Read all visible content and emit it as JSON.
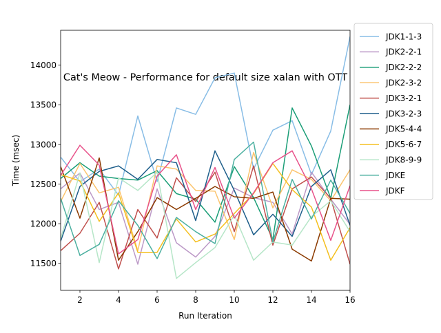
{
  "chart_data": {
    "type": "line",
    "title": "Cat's Meow - Performance for default size xalan with OTT",
    "xlabel": "Run Iteration",
    "ylabel": "Time (msec)",
    "xlim": [
      1,
      16
    ],
    "ylim": [
      11160,
      14440
    ],
    "xticks": [
      2,
      4,
      6,
      8,
      10,
      12,
      14,
      16
    ],
    "yticks": [
      11500,
      12000,
      12500,
      13000,
      13500,
      14000
    ],
    "grid": false,
    "legend_position": "outside-right",
    "x": [
      1,
      2,
      3,
      4,
      5,
      6,
      7,
      8,
      9,
      10,
      11,
      12,
      13,
      14,
      15,
      16
    ],
    "series": [
      {
        "name": "JDK1-1-3",
        "color": "#88bde6",
        "values": [
          12840,
          12530,
          12690,
          12360,
          13360,
          12530,
          13460,
          13380,
          13840,
          13900,
          12690,
          13180,
          13300,
          12620,
          13170,
          14360
        ]
      },
      {
        "name": "JDK2-2-1",
        "color": "#bc99c7",
        "values": [
          12440,
          12640,
          12180,
          12270,
          11490,
          12440,
          11760,
          11580,
          11840,
          12450,
          12330,
          12270,
          11870,
          12650,
          12310,
          11990
        ]
      },
      {
        "name": "JDK2-2-2",
        "color": "#1b9e77",
        "values": [
          12570,
          12770,
          12600,
          12570,
          12550,
          12670,
          12380,
          12310,
          12020,
          12720,
          12330,
          11800,
          13460,
          12980,
          12320,
          13500
        ]
      },
      {
        "name": "JDK2-3-2",
        "color": "#fbc46e",
        "values": [
          12280,
          12760,
          12390,
          12460,
          11660,
          12730,
          12690,
          12420,
          12410,
          11800,
          12900,
          12200,
          12680,
          12560,
          12290,
          12680
        ]
      },
      {
        "name": "JDK3-2-1",
        "color": "#c0504d",
        "values": [
          11660,
          11880,
          12270,
          11430,
          12180,
          11820,
          12580,
          12280,
          12650,
          11900,
          12730,
          11730,
          12440,
          12590,
          12320,
          11490
        ]
      },
      {
        "name": "JDK3-2-3",
        "color": "#1f5f8b",
        "values": [
          11780,
          12470,
          12660,
          12730,
          12560,
          12810,
          12770,
          12040,
          12920,
          12420,
          11860,
          12120,
          11840,
          12470,
          12680,
          11980
        ]
      },
      {
        "name": "JDK5-4-4",
        "color": "#8b3a00",
        "values": [
          12720,
          12070,
          12830,
          11540,
          11900,
          12330,
          12180,
          12320,
          12470,
          12340,
          12320,
          12400,
          11680,
          11530,
          12320,
          12310
        ]
      },
      {
        "name": "JDK5-6-7",
        "color": "#f4bf1e",
        "values": [
          12620,
          12540,
          12030,
          12390,
          11640,
          11640,
          12060,
          11770,
          11870,
          12130,
          12380,
          12760,
          12430,
          12210,
          11540,
          11950
        ]
      },
      {
        "name": "JDK8-9-9",
        "color": "#b6e6c8",
        "values": [
          11810,
          12640,
          11510,
          12580,
          12420,
          12650,
          11310,
          11510,
          11700,
          12110,
          11540,
          11770,
          11730,
          12090,
          12290,
          11900
        ]
      },
      {
        "name": "JDKE",
        "color": "#4cb0a0",
        "values": [
          12320,
          11600,
          11740,
          12290,
          11980,
          11560,
          12080,
          11900,
          11750,
          12810,
          13030,
          11770,
          12560,
          12060,
          12550,
          12130
        ]
      },
      {
        "name": "JDKF",
        "color": "#e8528a",
        "values": [
          12610,
          12990,
          12740,
          11620,
          11800,
          12600,
          12870,
          12180,
          12710,
          12070,
          12390,
          12770,
          12920,
          12440,
          11790,
          12480
        ]
      }
    ]
  }
}
